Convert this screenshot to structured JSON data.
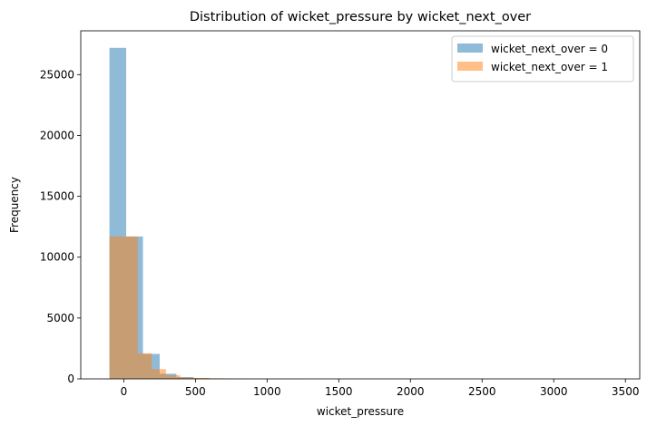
{
  "chart_data": {
    "type": "histogram",
    "title": "Distribution of wicket_pressure by wicket_next_over",
    "xlabel": "wicket_pressure",
    "ylabel": "Frequency",
    "xlim": [
      -300,
      3600
    ],
    "ylim": [
      0,
      28600
    ],
    "xticks": [
      0,
      500,
      1000,
      1500,
      2000,
      2500,
      3000,
      3500
    ],
    "yticks": [
      0,
      5000,
      10000,
      15000,
      20000,
      25000
    ],
    "legend_position": "top-right",
    "series": [
      {
        "name": "wicket_next_over = 0",
        "color": "#1f77b4",
        "alpha": 0.5,
        "bin_edges": [
          -100,
          16.9,
          133.8,
          250.7,
          367.6,
          484.5,
          601.4,
          718.3,
          835.2,
          952.1,
          1069,
          1185.9,
          1302.8,
          1419.7,
          1536.6,
          1653.5,
          1770.4,
          1887.3,
          2004.2,
          2121.1,
          2238,
          2354.9,
          2471.8,
          2588.7,
          2705.6,
          2822.5,
          2939.4,
          3056.3,
          3173.2,
          3290.1,
          3407
        ],
        "counts": [
          27200,
          11700,
          2050,
          420,
          150,
          60,
          25,
          12,
          6,
          4,
          2,
          2,
          1,
          1,
          0,
          0,
          0,
          0,
          0,
          0,
          0,
          0,
          0,
          0,
          0,
          0,
          0,
          0,
          0,
          1
        ]
      },
      {
        "name": "wicket_next_over = 1",
        "color": "#ff7f0e",
        "alpha": 0.5,
        "bin_edges": [
          -100,
          -1.4,
          97.2,
          195.8,
          294.4,
          393,
          491.6,
          590.2,
          688.8,
          787.4,
          886
        ],
        "counts": [
          11700,
          11700,
          2100,
          800,
          300,
          120,
          80,
          50,
          30,
          10
        ]
      }
    ]
  }
}
